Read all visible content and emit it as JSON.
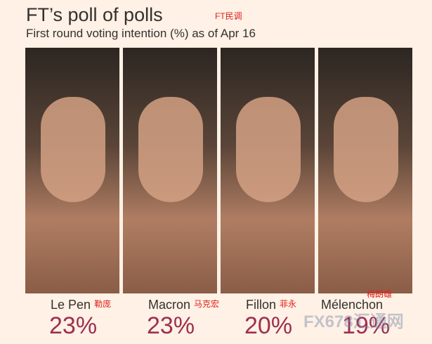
{
  "header": {
    "title": "FT’s poll of polls",
    "subtitle": "First round voting intention (%) as of Apr 16",
    "annotation": "FT民调"
  },
  "candidates": [
    {
      "name": "Le Pen",
      "note": "勒庞",
      "share": "23%"
    },
    {
      "name": "Macron",
      "note": "马克宏",
      "share": "23%"
    },
    {
      "name": "Fillon",
      "note": "菲永",
      "share": "20%"
    },
    {
      "name": "Mélenchon",
      "note": "梅朗雄",
      "share": "19%"
    }
  ],
  "watermark": "FX678汇通网"
}
